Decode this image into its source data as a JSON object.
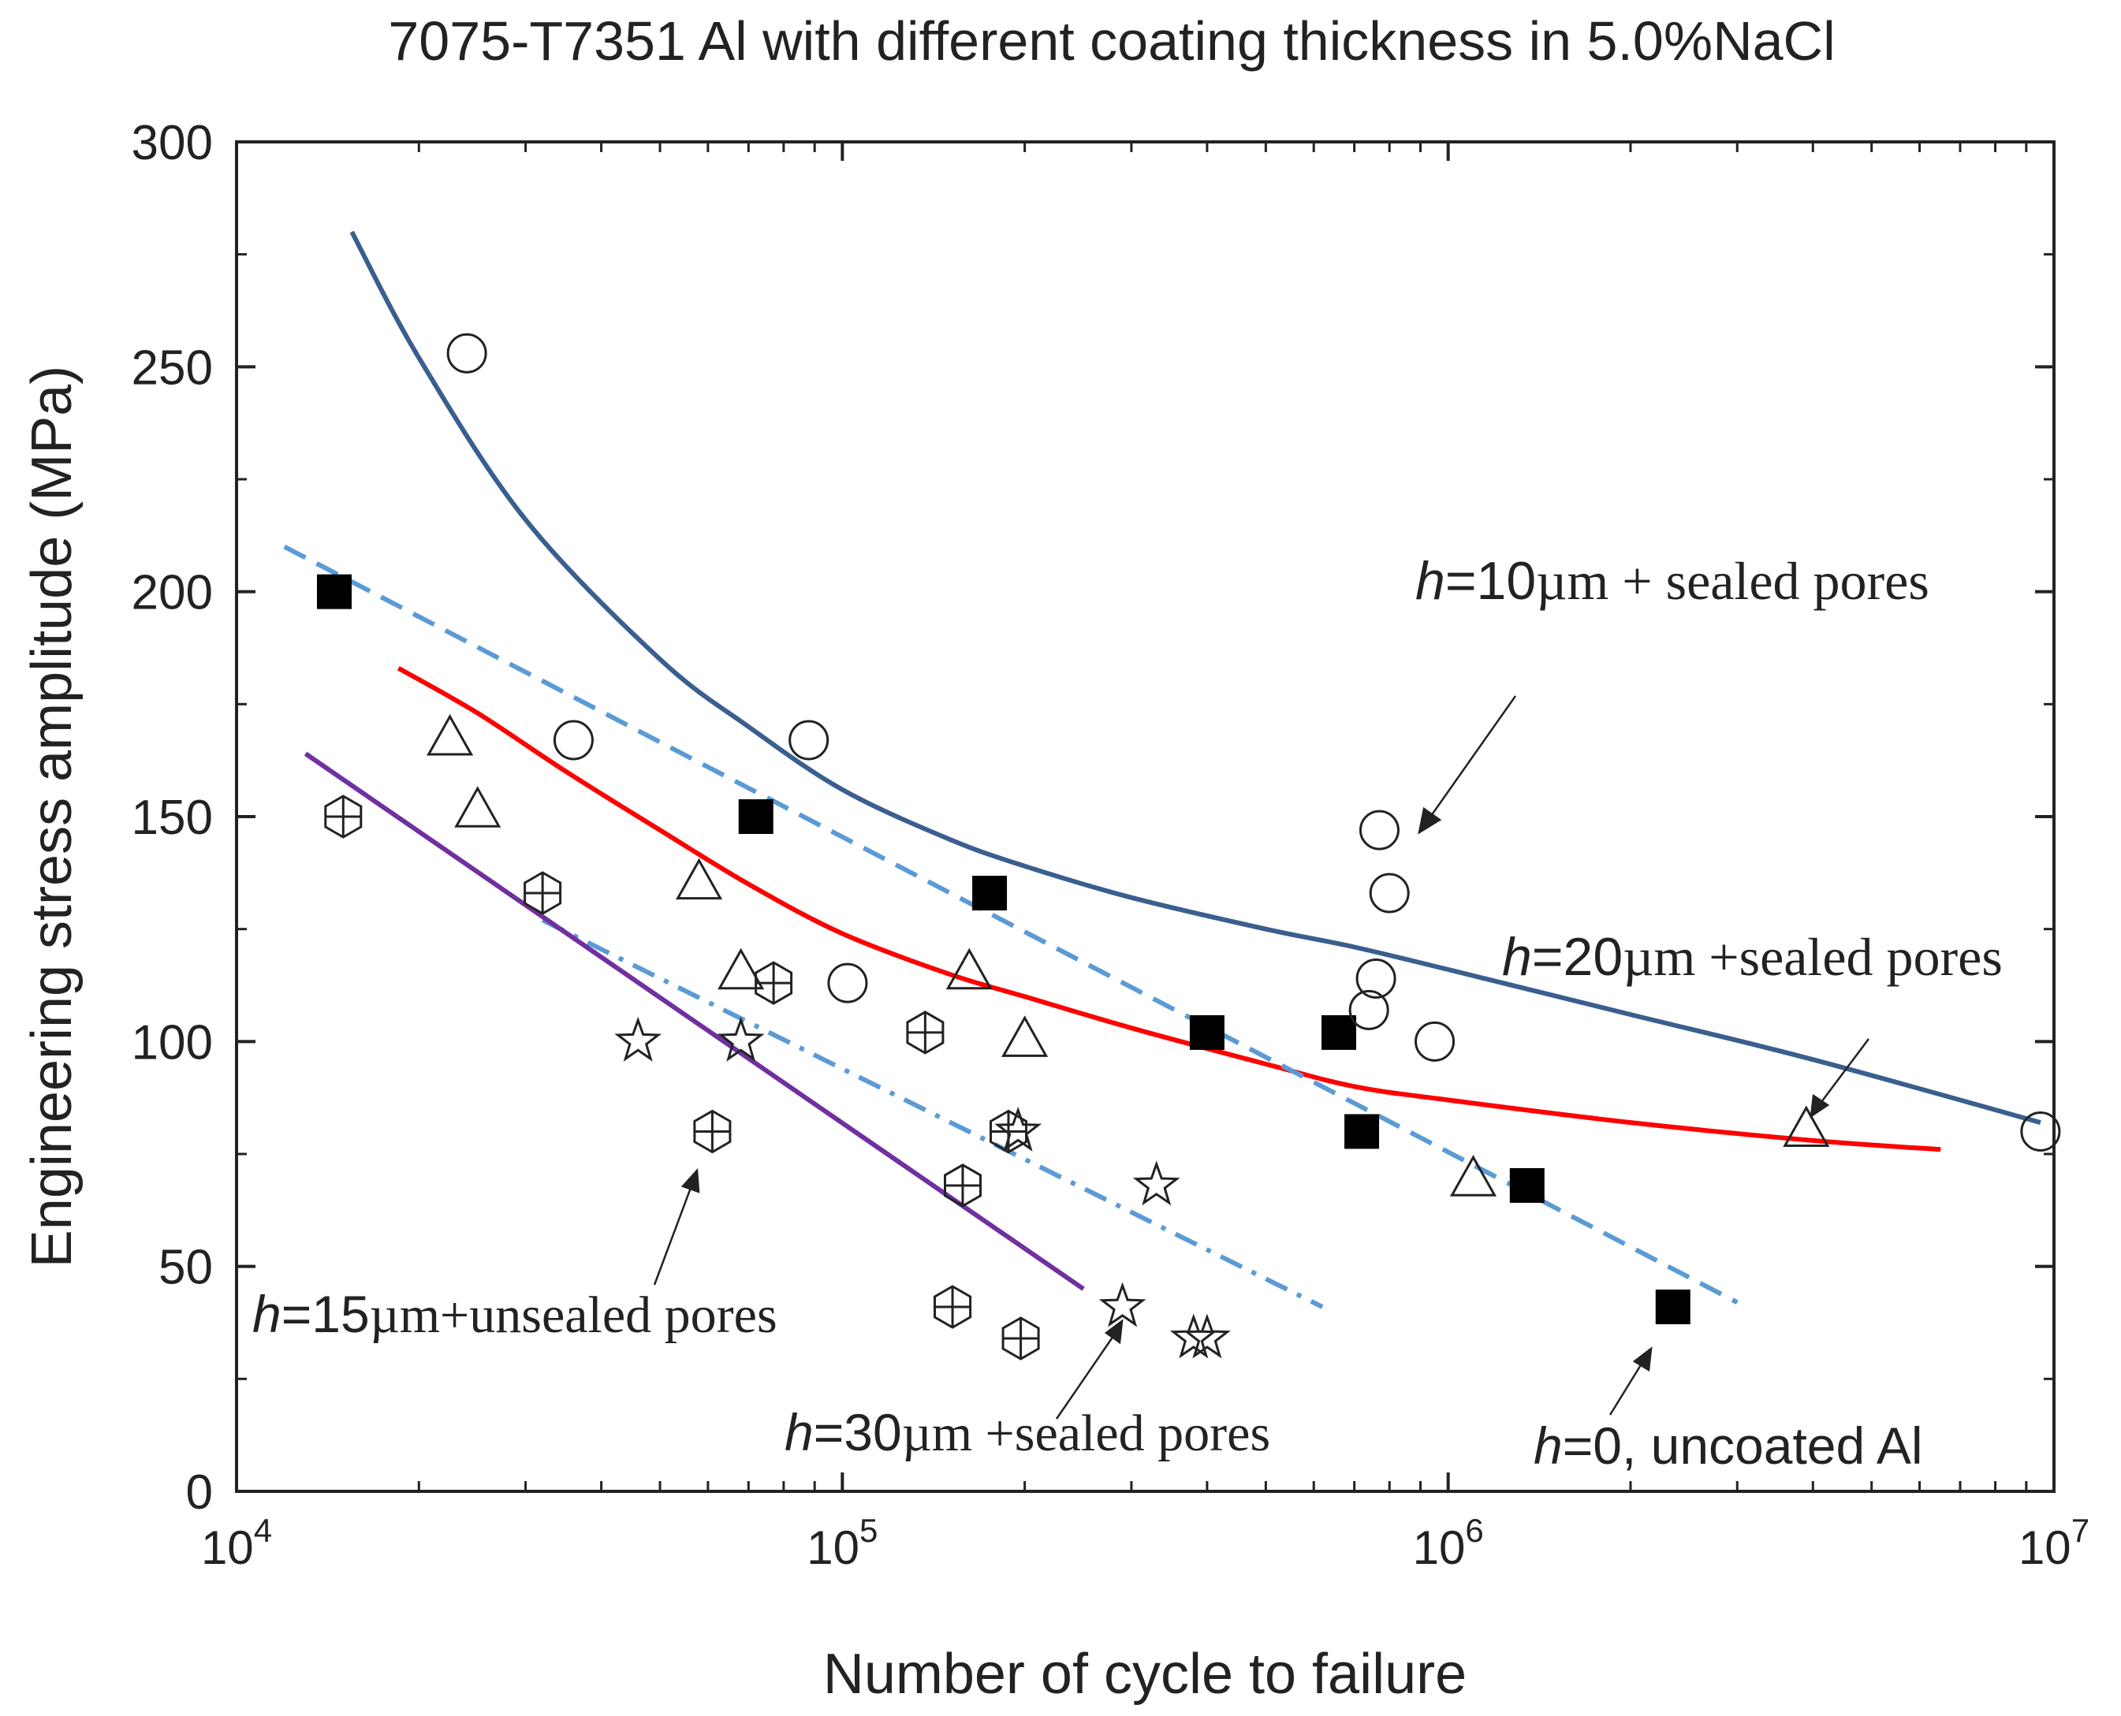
{
  "chart_data": {
    "type": "scatter",
    "title": "7075-T7351 Al with different coating thickness in 5.0%NaCl",
    "xlabel": "Number of cycle to failure",
    "ylabel": "Engineering stress amplitude (MPa)",
    "xscale": "log",
    "xlim": [
      10000,
      10000000
    ],
    "ylim": [
      0,
      300
    ],
    "yticks": [
      {
        "value": 0,
        "label": "0"
      },
      {
        "value": 50,
        "label": "50"
      },
      {
        "value": 100,
        "label": "100"
      },
      {
        "value": 150,
        "label": "150"
      },
      {
        "value": 200,
        "label": "200"
      },
      {
        "value": 250,
        "label": "250"
      },
      {
        "value": 300,
        "label": "300"
      }
    ],
    "xticks": [
      {
        "value": 10000,
        "base": "10",
        "exp": "4"
      },
      {
        "value": 100000,
        "base": "10",
        "exp": "5"
      },
      {
        "value": 1000000,
        "base": "10",
        "exp": "6"
      },
      {
        "value": 10000000,
        "base": "10",
        "exp": "7"
      }
    ],
    "series": [
      {
        "name": "h=0, uncoated Al",
        "marker": "filled-square",
        "x": [
          14500,
          72000,
          175000,
          400000,
          660000,
          720000,
          1350000,
          2350000
        ],
        "y": [
          200,
          150,
          133,
          102,
          102,
          80,
          68,
          41
        ]
      },
      {
        "name": "h=10µm + sealed pores",
        "marker": "open-circle",
        "x": [
          24000,
          36000,
          88000,
          102000,
          740000,
          770000,
          800000,
          760000,
          950000,
          9500000
        ],
        "y": [
          253,
          167,
          167,
          113,
          107,
          147,
          133,
          114,
          100,
          80
        ]
      },
      {
        "name": "h=20µm + sealed pores",
        "marker": "open-triangle",
        "x": [
          22500,
          25000,
          58000,
          68000,
          162000,
          200000,
          1100000,
          3900000
        ],
        "y": [
          167,
          151,
          135,
          115,
          115,
          100,
          69,
          80
        ]
      },
      {
        "name": "h=15µm + unsealed pores",
        "marker": "crossed-hexagon",
        "x": [
          15000,
          32000,
          61000,
          77000,
          137000,
          152000,
          158000,
          188000,
          197000
        ],
        "y": [
          150,
          133,
          80,
          113,
          102,
          41,
          68,
          80,
          34
        ]
      },
      {
        "name": "h=30µm + sealed pores",
        "marker": "open-star",
        "x": [
          46000,
          68000,
          195000,
          330000,
          290000,
          380000,
          400000
        ],
        "y": [
          100,
          100,
          80,
          68,
          41,
          34,
          34
        ]
      }
    ],
    "fit_curves": [
      {
        "name": "h=10µm fit",
        "style": "solid",
        "color": "#3a5f8f",
        "x": [
          15500,
          20000,
          30000,
          50000,
          70000,
          100000,
          150000,
          200000,
          300000,
          500000,
          700000,
          1000000,
          2000000,
          4000000,
          9500000
        ],
        "y": [
          280,
          252,
          216,
          185,
          170,
          156,
          145,
          139,
          132,
          125,
          121,
          116,
          106,
          96,
          82
        ]
      },
      {
        "name": "h=20µm fit",
        "style": "solid",
        "color": "#ff0000",
        "x": [
          18500,
          25000,
          35000,
          50000,
          70000,
          100000,
          150000,
          200000,
          300000,
          500000,
          700000,
          1000000,
          2000000,
          4000000,
          6500000
        ],
        "y": [
          183,
          173,
          160,
          147,
          135,
          124,
          115,
          110,
          103,
          95,
          90,
          87,
          82,
          78,
          76
        ]
      },
      {
        "name": "h=0 fit",
        "style": "dashed",
        "color": "#5b9bd5",
        "x": [
          12000,
          3000000
        ],
        "y": [
          210,
          42
        ]
      },
      {
        "name": "h=30µm fit",
        "style": "dashdot",
        "color": "#5b9bd5",
        "x": [
          32000,
          620000
        ],
        "y": [
          127,
          41
        ]
      },
      {
        "name": "h=15µm fit",
        "style": "solid",
        "color": "#7030a0",
        "x": [
          13000,
          250000
        ],
        "y": [
          164,
          45
        ]
      }
    ],
    "annotations": [
      {
        "id": "h10",
        "italic": "h",
        "sans": "=10",
        "serif": "µm + sealed pores"
      },
      {
        "id": "h20",
        "italic": "h",
        "sans": "=20",
        "serif": "µm +sealed pores"
      },
      {
        "id": "h15",
        "italic": "h",
        "sans": "=15",
        "serif": "µm+unsealed pores"
      },
      {
        "id": "h30",
        "italic": "h",
        "sans": "=30",
        "serif": "µm +sealed pores"
      },
      {
        "id": "h0",
        "italic": "h",
        "sans": "=0, uncoated Al",
        "serif": ""
      }
    ]
  }
}
